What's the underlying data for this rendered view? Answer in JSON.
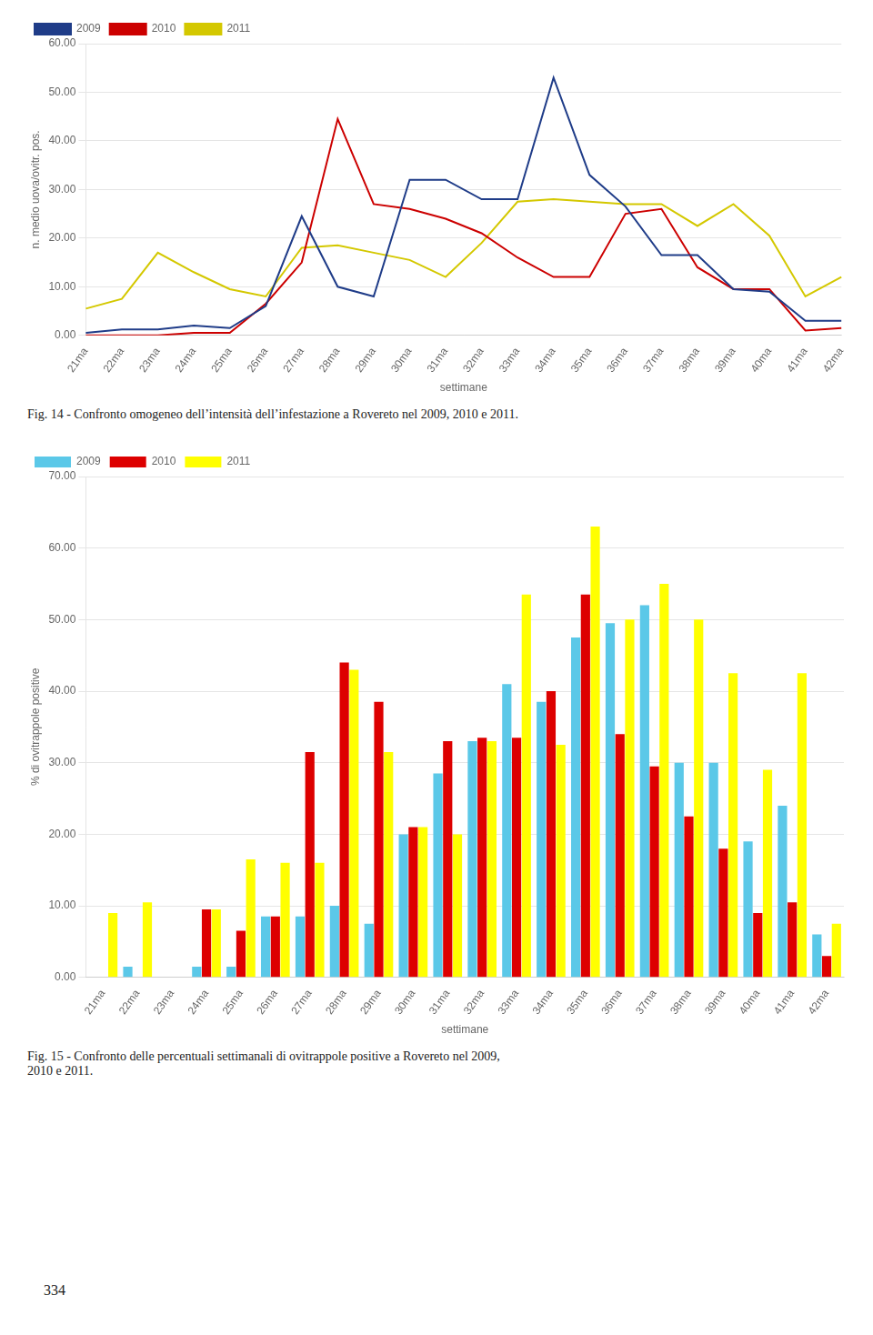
{
  "chart_data": [
    {
      "type": "line",
      "categories": [
        "21ma",
        "22ma",
        "23ma",
        "24ma",
        "25ma",
        "26ma",
        "27ma",
        "28ma",
        "29ma",
        "30ma",
        "31ma",
        "32ma",
        "33ma",
        "34ma",
        "35ma",
        "36ma",
        "37ma",
        "38ma",
        "39ma",
        "40ma",
        "41ma",
        "42ma"
      ],
      "series": [
        {
          "name": "2009",
          "color": "#1F3C88",
          "values": [
            0.5,
            1.2,
            1.2,
            2.0,
            1.5,
            6.0,
            24.5,
            10.0,
            8.0,
            32.0,
            32.0,
            28.0,
            28.0,
            53.0,
            33.0,
            26.5,
            16.5,
            16.5,
            9.5,
            9.0,
            3.0,
            3.0
          ]
        },
        {
          "name": "2010",
          "color": "#CC0000",
          "values": [
            0.0,
            0.0,
            0.0,
            0.5,
            0.5,
            6.5,
            15.0,
            44.5,
            27.0,
            26.0,
            24.0,
            21.0,
            16.0,
            12.0,
            12.0,
            25.0,
            26.0,
            14.0,
            9.5,
            9.5,
            1.0,
            1.5
          ]
        },
        {
          "name": "2011",
          "color": "#D4C800",
          "values": [
            5.5,
            7.5,
            17.0,
            13.0,
            9.5,
            8.0,
            18.0,
            18.5,
            17.0,
            15.5,
            12.0,
            19.0,
            27.5,
            28.0,
            27.5,
            27.0,
            27.0,
            22.5,
            27.0,
            20.5,
            8.0,
            12.0
          ]
        }
      ],
      "xlabel": "settimane",
      "ylabel": "n. medio uova/ovitr. pos.",
      "ylim": [
        0,
        60
      ],
      "yticks": [
        {
          "value": 0,
          "label": "0.00"
        },
        {
          "value": 10,
          "label": "10.00"
        },
        {
          "value": 20,
          "label": "20.00"
        },
        {
          "value": 30,
          "label": "30.00"
        },
        {
          "value": 40,
          "label": "40.00"
        },
        {
          "value": 50,
          "label": "50.00"
        },
        {
          "value": 60,
          "label": "60.00"
        }
      ],
      "grid": true,
      "legend": "upper left",
      "caption": "Fig. 14 - Confronto omogeneo dell’intensità dell’infestazione a Rovereto nel 2009, 2010 e 2011."
    },
    {
      "type": "bar",
      "categories": [
        "21ma",
        "22ma",
        "23ma",
        "24ma",
        "25ma",
        "26ma",
        "27ma",
        "28ma",
        "29ma",
        "30ma",
        "31ma",
        "32ma",
        "33ma",
        "34ma",
        "35ma",
        "36ma",
        "37ma",
        "38ma",
        "39ma",
        "40ma",
        "41ma",
        "42ma"
      ],
      "series": [
        {
          "name": "2009",
          "color": "#5BC8E8",
          "values": [
            0.0,
            1.5,
            0.0,
            1.5,
            1.5,
            8.5,
            8.5,
            10.0,
            7.5,
            20.0,
            28.5,
            33.0,
            41.0,
            38.5,
            47.5,
            49.5,
            52.0,
            30.0,
            30.0,
            19.0,
            24.0,
            6.0
          ]
        },
        {
          "name": "2010",
          "color": "#DD0000",
          "values": [
            0.0,
            0.0,
            0.0,
            9.5,
            6.5,
            8.5,
            31.5,
            44.0,
            38.5,
            21.0,
            33.0,
            33.5,
            33.5,
            40.0,
            53.5,
            34.0,
            29.5,
            22.5,
            18.0,
            9.0,
            10.5,
            3.0
          ]
        },
        {
          "name": "2011",
          "color": "#FFFF00",
          "values": [
            9.0,
            10.5,
            0.0,
            9.5,
            16.5,
            16.0,
            16.0,
            43.0,
            31.5,
            21.0,
            20.0,
            33.0,
            53.5,
            32.5,
            63.0,
            50.0,
            55.0,
            50.0,
            42.5,
            29.0,
            42.5,
            7.5
          ]
        }
      ],
      "xlabel": "settimane",
      "ylabel": "% di ovitrappole positive",
      "ylim": [
        0,
        70
      ],
      "yticks": [
        {
          "value": 0,
          "label": "0.00"
        },
        {
          "value": 10,
          "label": "10.00"
        },
        {
          "value": 20,
          "label": "20.00"
        },
        {
          "value": 30,
          "label": "30.00"
        },
        {
          "value": 40,
          "label": "40.00"
        },
        {
          "value": 50,
          "label": "50.00"
        },
        {
          "value": 60,
          "label": "60.00"
        },
        {
          "value": 70,
          "label": "70.00"
        }
      ],
      "grid": true,
      "legend": "upper left",
      "caption": "Fig. 15 - Confronto delle percentuali settimanali di ovitrappole positive a Rovereto nel 2009,\n2010 e 2011."
    }
  ],
  "page_number": "334"
}
